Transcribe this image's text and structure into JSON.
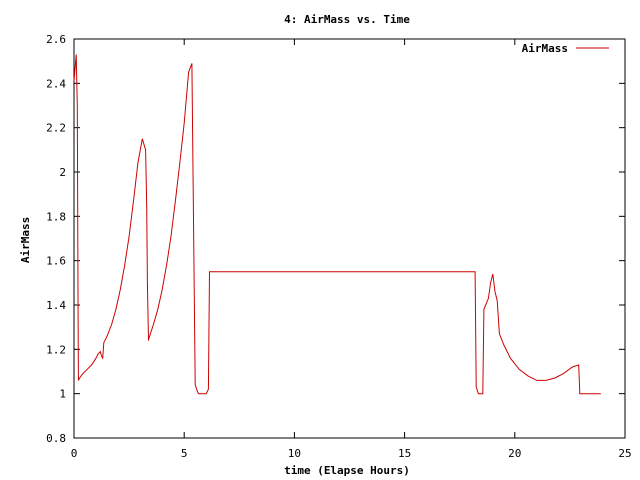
{
  "chart_data": {
    "type": "line",
    "title": "4: AirMass vs. Time",
    "xlabel": "time (Elapse Hours)",
    "ylabel": "AirMass",
    "xlim": [
      0,
      25
    ],
    "ylim": [
      0.8,
      2.6
    ],
    "xticks": [
      0,
      5,
      10,
      15,
      20,
      25
    ],
    "yticks": [
      0.8,
      1,
      1.2,
      1.4,
      1.6,
      1.8,
      2,
      2.2,
      2.4,
      2.6
    ],
    "xtick_labels": [
      "0",
      "5",
      "10",
      "15",
      "20",
      "25"
    ],
    "ytick_labels": [
      "0.8",
      "1",
      "1.2",
      "1.4",
      "1.6",
      "1.8",
      "2",
      "2.2",
      "2.4",
      "2.6"
    ],
    "grid": false,
    "legend_position": "top-right",
    "colors": {
      "series": "#cc0000",
      "axes": "#000000"
    },
    "series": [
      {
        "name": "AirMass",
        "x": [
          0.0,
          0.05,
          0.1,
          0.15,
          0.18,
          0.2,
          0.25,
          0.4,
          0.6,
          0.8,
          1.0,
          1.1,
          1.2,
          1.25,
          1.3,
          1.35,
          1.5,
          1.7,
          1.9,
          2.1,
          2.3,
          2.5,
          2.7,
          2.9,
          3.1,
          3.25,
          3.3,
          3.33,
          3.38,
          3.4,
          3.6,
          3.8,
          4.0,
          4.2,
          4.4,
          4.6,
          4.8,
          5.0,
          5.2,
          5.35,
          5.5,
          5.6,
          5.65,
          5.7,
          5.8,
          6.0,
          6.1,
          6.15,
          6.2,
          18.2,
          18.25,
          18.35,
          18.45,
          18.55,
          18.6,
          18.8,
          18.9,
          19.0,
          19.1,
          19.2,
          19.3,
          19.5,
          19.8,
          20.2,
          20.6,
          21.0,
          21.4,
          21.8,
          22.2,
          22.6,
          22.9,
          22.95,
          23.0,
          23.2,
          23.5,
          23.8,
          23.9
        ],
        "y": [
          2.41,
          2.47,
          2.53,
          2.3,
          1.45,
          1.06,
          1.07,
          1.09,
          1.11,
          1.13,
          1.16,
          1.18,
          1.19,
          1.17,
          1.16,
          1.23,
          1.26,
          1.31,
          1.38,
          1.47,
          1.58,
          1.71,
          1.87,
          2.04,
          2.15,
          2.1,
          1.85,
          1.5,
          1.24,
          1.25,
          1.31,
          1.38,
          1.47,
          1.58,
          1.71,
          1.87,
          2.04,
          2.22,
          2.45,
          2.49,
          1.04,
          1.01,
          1.0,
          1.0,
          1.0,
          1.0,
          1.02,
          1.55,
          1.55,
          1.55,
          1.03,
          1.0,
          1.0,
          1.0,
          1.38,
          1.43,
          1.5,
          1.54,
          1.46,
          1.42,
          1.27,
          1.22,
          1.16,
          1.11,
          1.08,
          1.06,
          1.06,
          1.07,
          1.09,
          1.12,
          1.13,
          1.0,
          1.0,
          1.0,
          1.0,
          1.0,
          1.0
        ]
      }
    ]
  }
}
